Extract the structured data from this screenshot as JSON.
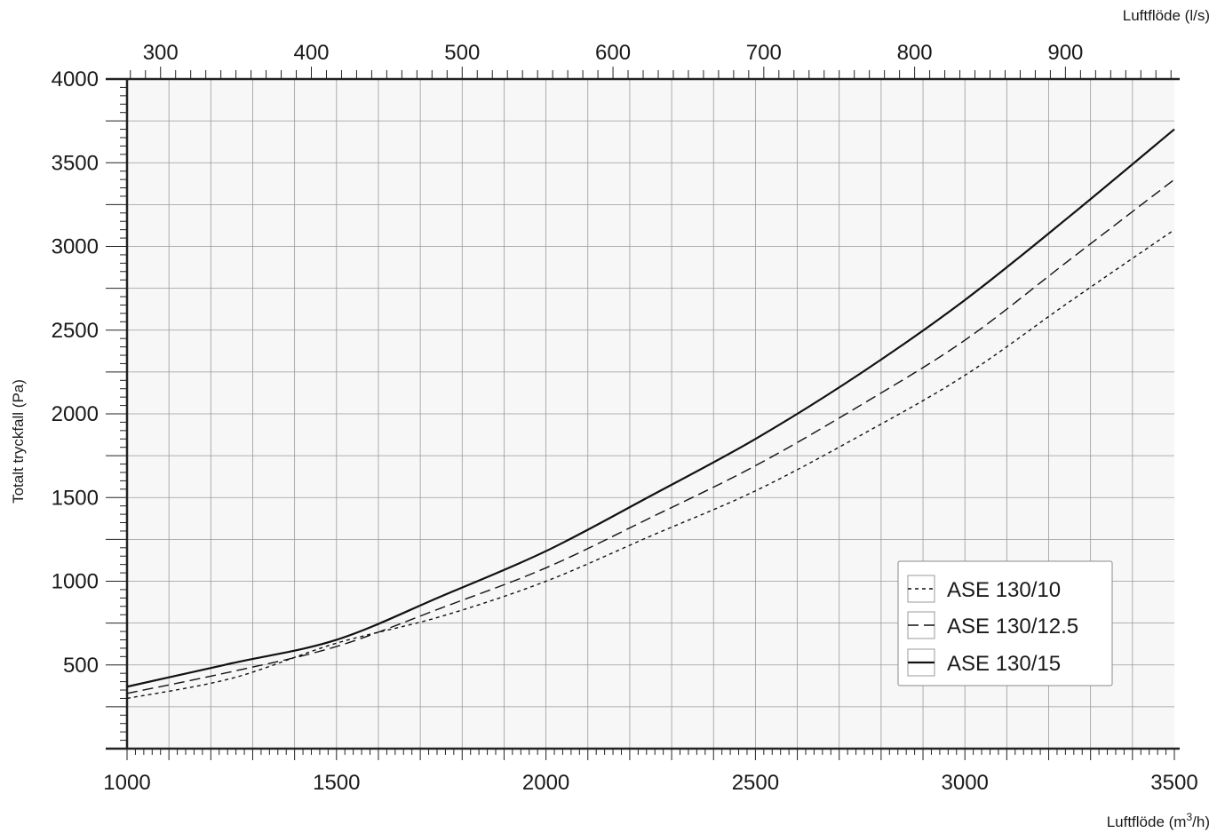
{
  "chart_data": {
    "type": "line",
    "xlabel_bottom": "Luftflöde (m",
    "xlabel_bottom_sup": "3",
    "xlabel_bottom_tail": "/h)",
    "xlabel_top": "Luftflöde (l/s)",
    "ylabel": "Totalt tryckfall (Pa)",
    "xlim": [
      1000,
      3500
    ],
    "ylim": [
      0,
      4000
    ],
    "x_ticks": [
      "1000",
      "1500",
      "2000",
      "2500",
      "3000",
      "3500"
    ],
    "y_ticks": [
      "500",
      "1000",
      "1500",
      "2000",
      "2500",
      "3000",
      "3500",
      "4000"
    ],
    "top_ticks": [
      "300",
      "400",
      "500",
      "600",
      "700",
      "800",
      "900"
    ],
    "grid": true,
    "legend_position": "bottom-right",
    "x": [
      1000,
      1250,
      1500,
      1750,
      2000,
      2250,
      2500,
      2750,
      3000,
      3250,
      3500
    ],
    "series": [
      {
        "name": "ASE 130/10",
        "style": "dotted",
        "values": [
          300,
          420,
          630,
          790,
          1000,
          1270,
          1540,
          1870,
          2230,
          2670,
          3100
        ]
      },
      {
        "name": "ASE 130/12.5",
        "style": "dashed",
        "values": [
          330,
          460,
          610,
          840,
          1080,
          1380,
          1690,
          2050,
          2440,
          2920,
          3400
        ]
      },
      {
        "name": "ASE 130/15",
        "style": "solid",
        "values": [
          370,
          510,
          650,
          910,
          1180,
          1510,
          1850,
          2240,
          2680,
          3180,
          3700
        ]
      }
    ],
    "colors": {
      "line": "#111111",
      "grid": "#9a9a9a",
      "axis": "#222222"
    }
  }
}
